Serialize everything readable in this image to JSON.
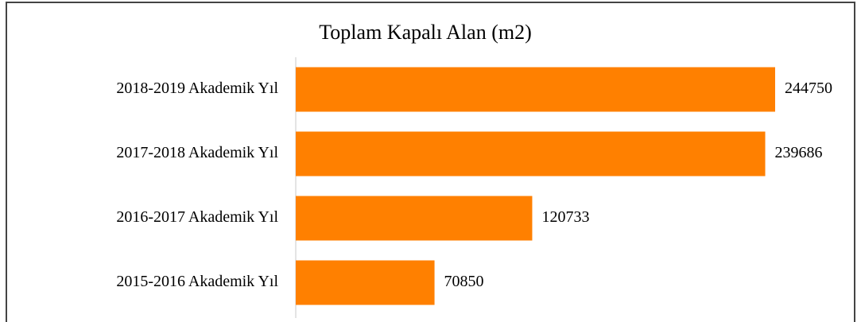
{
  "chart_data": {
    "type": "bar",
    "orientation": "horizontal",
    "title": "Toplam Kapalı Alan (m2)",
    "categories": [
      "2018-2019 Akademik Yıl",
      "2017-2018 Akademik Yıl",
      "2016-2017 Akademik Yıl",
      "2015-2016 Akademik Yıl"
    ],
    "values": [
      244750,
      239686,
      120733,
      70850
    ],
    "color": "#ff8000"
  }
}
